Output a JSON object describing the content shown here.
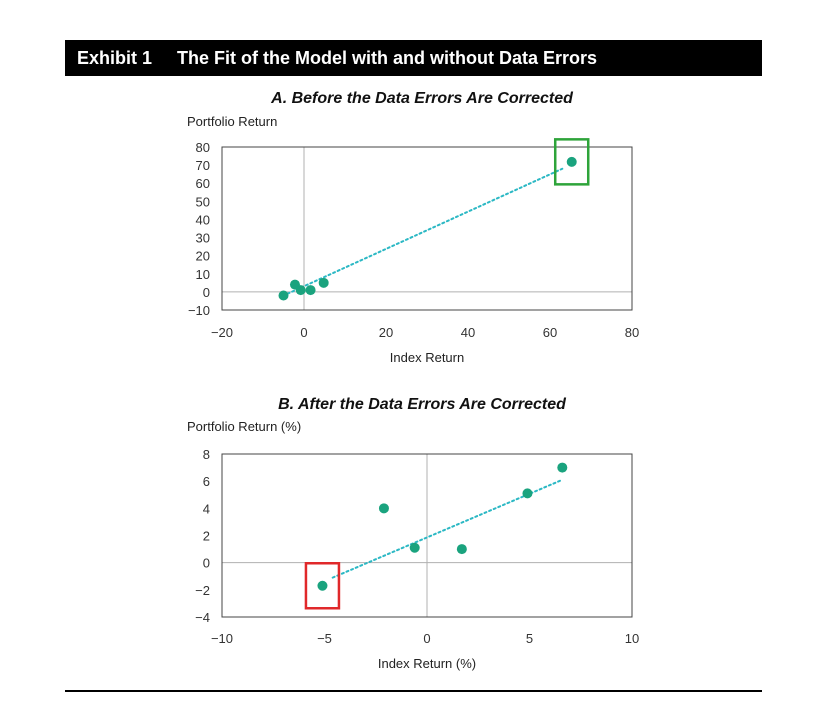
{
  "exhibit": {
    "label": "Exhibit 1",
    "title": "The Fit of the Model with and without Data Errors"
  },
  "colors": {
    "point": "#1aa37e",
    "trend": "#2bb8c4",
    "highlight_a": "#2ea43a",
    "highlight_b": "#e0282a",
    "zero_line": "#b0b0b0",
    "frame": "#444444"
  },
  "chart_data": [
    {
      "type": "scatter",
      "title": "A. Before the Data Errors Are Corrected",
      "xlabel": "Index Return",
      "ylabel": "Portfolio Return",
      "xlim": [
        -20,
        80
      ],
      "ylim": [
        -10,
        80
      ],
      "xticks": [
        -20,
        0,
        20,
        40,
        60,
        80
      ],
      "xtick_labels": [
        "−20",
        "0",
        "20",
        "40",
        "60",
        "80"
      ],
      "yticks": [
        80,
        70,
        60,
        50,
        40,
        30,
        20,
        10,
        0,
        -10
      ],
      "ytick_labels": [
        "80",
        "70",
        "60",
        "50",
        "40",
        "30",
        "20",
        "10",
        "0",
        "−10"
      ],
      "points": [
        {
          "x": -5,
          "y": -2
        },
        {
          "x": -2.2,
          "y": 4
        },
        {
          "x": -0.8,
          "y": 1
        },
        {
          "x": 1.6,
          "y": 1
        },
        {
          "x": 4.8,
          "y": 5
        },
        {
          "x": 65.3,
          "y": 71.8
        }
      ],
      "trendline": {
        "x": [
          -4,
          63
        ],
        "y": [
          -1,
          68
        ]
      },
      "highlight": {
        "x": 65.3,
        "y": 71.8,
        "color_key": "highlight_a"
      },
      "grid": false
    },
    {
      "type": "scatter",
      "title": "B. After the Data Errors Are Corrected",
      "xlabel": "Index Return (%)",
      "ylabel": "Portfolio Return (%)",
      "xlim": [
        -10,
        10
      ],
      "ylim": [
        -4,
        8
      ],
      "xticks": [
        -10,
        -5,
        0,
        5,
        10
      ],
      "xtick_labels": [
        "−10",
        "−5",
        "0",
        "5",
        "10"
      ],
      "yticks": [
        8,
        6,
        4,
        2,
        0,
        -2,
        -4
      ],
      "ytick_labels": [
        "8",
        "6",
        "4",
        "2",
        "0",
        "−2",
        "−4"
      ],
      "points": [
        {
          "x": -5.1,
          "y": -1.7
        },
        {
          "x": -2.1,
          "y": 4
        },
        {
          "x": -0.6,
          "y": 1.1
        },
        {
          "x": 1.7,
          "y": 1
        },
        {
          "x": 4.9,
          "y": 5.1
        },
        {
          "x": 6.6,
          "y": 7
        }
      ],
      "trendline": {
        "x": [
          -4.6,
          6.6
        ],
        "y": [
          -1.1,
          6.1
        ]
      },
      "highlight": {
        "x": -5.1,
        "y": -1.7,
        "color_key": "highlight_b"
      },
      "grid": false
    }
  ]
}
